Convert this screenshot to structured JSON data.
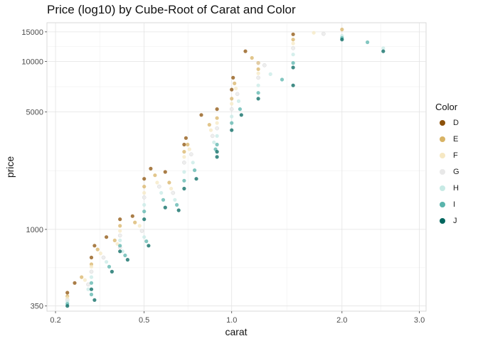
{
  "chart_data": {
    "type": "scatter",
    "title": "Price (log10) by Cube-Root of Carat and Color",
    "xlabel": "carat",
    "ylabel": "price",
    "x_scale": "cube-root",
    "y_scale": "log10",
    "xlim": [
      0.18,
      3.1
    ],
    "ylim": [
      326,
      17000
    ],
    "x_ticks": [
      0.2,
      0.5,
      1.0,
      2.0,
      3.0
    ],
    "x_tick_labels": [
      "0.2",
      "0.5",
      "1.0",
      "2.0",
      "3.0"
    ],
    "y_ticks": [
      350,
      1000,
      5000,
      10000,
      15000
    ],
    "y_tick_labels": [
      "350",
      "1000",
      "5000",
      "10000",
      "15000"
    ],
    "grid": true,
    "legend": {
      "title": "Color",
      "position": "right",
      "entries": [
        "D",
        "E",
        "F",
        "G",
        "H",
        "I",
        "J"
      ]
    },
    "series": [
      {
        "name": "D",
        "color": "#8c510a",
        "x": [
          0.23,
          0.3,
          0.31,
          0.4,
          0.5,
          0.53,
          0.7,
          0.71,
          0.9,
          1.0,
          1.01,
          1.2,
          1.5,
          0.25,
          0.35,
          0.45,
          0.6,
          0.8,
          1.1
        ],
        "y": [
          420,
          680,
          800,
          1150,
          2000,
          2300,
          3200,
          3500,
          5200,
          6800,
          8000,
          9800,
          14500,
          480,
          900,
          1200,
          2200,
          4800,
          11500
        ]
      },
      {
        "name": "E",
        "color": "#d8b365",
        "x": [
          0.23,
          0.3,
          0.32,
          0.4,
          0.5,
          0.55,
          0.7,
          0.72,
          0.9,
          1.0,
          1.02,
          1.2,
          1.5,
          0.27,
          0.38,
          0.46,
          0.62,
          0.85,
          1.15,
          2.0
        ],
        "y": [
          400,
          620,
          760,
          1050,
          1800,
          2100,
          2900,
          3200,
          4600,
          6000,
          7400,
          9000,
          13500,
          520,
          860,
          1100,
          1900,
          4200,
          10500,
          15500
        ]
      },
      {
        "name": "F",
        "color": "#f6e8c3",
        "x": [
          0.23,
          0.3,
          0.33,
          0.4,
          0.5,
          0.56,
          0.7,
          0.73,
          0.9,
          1.0,
          1.03,
          1.2,
          1.5,
          0.28,
          0.39,
          0.48,
          0.63,
          0.86,
          1.2,
          1.7
        ],
        "y": [
          390,
          600,
          720,
          980,
          1650,
          1900,
          2700,
          3000,
          4300,
          5600,
          6900,
          8500,
          12800,
          500,
          820,
          1050,
          1750,
          3900,
          9800,
          14800
        ]
      },
      {
        "name": "G",
        "color": "#e8e8e8",
        "x": [
          0.23,
          0.3,
          0.34,
          0.4,
          0.5,
          0.57,
          0.7,
          0.74,
          0.9,
          1.0,
          1.04,
          1.2,
          1.5,
          0.29,
          0.4,
          0.49,
          0.64,
          0.87,
          1.25,
          1.8
        ],
        "y": [
          380,
          560,
          680,
          920,
          1550,
          1800,
          2500,
          2800,
          4000,
          5200,
          6400,
          8000,
          12000,
          470,
          780,
          980,
          1650,
          3600,
          9500,
          14600
        ]
      },
      {
        "name": "H",
        "color": "#c7eae5",
        "x": [
          0.23,
          0.3,
          0.35,
          0.4,
          0.5,
          0.58,
          0.7,
          0.75,
          0.9,
          1.0,
          1.05,
          1.2,
          1.5,
          0.29,
          0.41,
          0.5,
          0.65,
          0.88,
          1.3,
          2.0,
          2.5
        ],
        "y": [
          370,
          520,
          640,
          860,
          1400,
          1650,
          2200,
          2500,
          3600,
          4700,
          5800,
          7200,
          11000,
          440,
          740,
          900,
          1500,
          3300,
          8400,
          14200,
          12000
        ]
      },
      {
        "name": "I",
        "color": "#5ab4ac",
        "x": [
          0.23,
          0.3,
          0.36,
          0.4,
          0.5,
          0.59,
          0.7,
          0.76,
          0.9,
          1.0,
          1.06,
          1.2,
          1.5,
          0.3,
          0.42,
          0.51,
          0.66,
          0.89,
          1.4,
          2.0,
          2.3
        ],
        "y": [
          360,
          480,
          600,
          800,
          1280,
          1500,
          1950,
          2250,
          3200,
          4300,
          5200,
          6500,
          9800,
          410,
          700,
          850,
          1400,
          3000,
          7800,
          13800,
          13000
        ]
      },
      {
        "name": "J",
        "color": "#01665e",
        "x": [
          0.23,
          0.3,
          0.37,
          0.4,
          0.5,
          0.6,
          0.7,
          0.77,
          0.9,
          1.0,
          1.07,
          1.2,
          1.5,
          0.31,
          0.43,
          0.52,
          0.67,
          0.9,
          1.5,
          2.0,
          2.5
        ],
        "y": [
          350,
          440,
          560,
          740,
          1150,
          1350,
          1750,
          2000,
          2900,
          3900,
          4800,
          6000,
          9200,
          380,
          660,
          800,
          1300,
          2700,
          7200,
          13500,
          11500
        ]
      }
    ]
  }
}
